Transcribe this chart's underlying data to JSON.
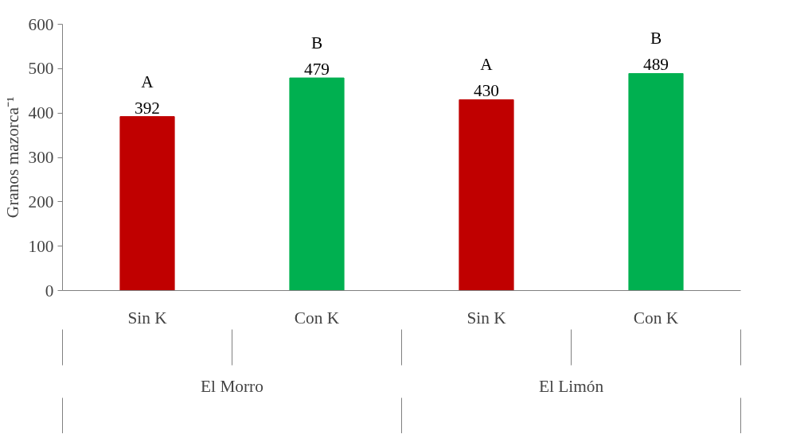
{
  "chart_data": {
    "type": "bar",
    "ylabel": "Granos mazorca⁻¹",
    "categories": [
      "Sin K",
      "Con K",
      "Sin K",
      "Con K"
    ],
    "values": [
      392,
      479,
      430,
      489
    ],
    "colors": [
      "#c00000",
      "#00b050",
      "#c00000",
      "#00b050"
    ],
    "value_labels": [
      "A\n392",
      "B\n479",
      "A\n430",
      "B\n489"
    ],
    "annotations": [
      "El Morro",
      "El Limón"
    ],
    "ylim": [
      0,
      600
    ],
    "yticks": [
      0,
      100,
      200,
      300,
      400,
      500,
      600
    ],
    "grid": false
  }
}
